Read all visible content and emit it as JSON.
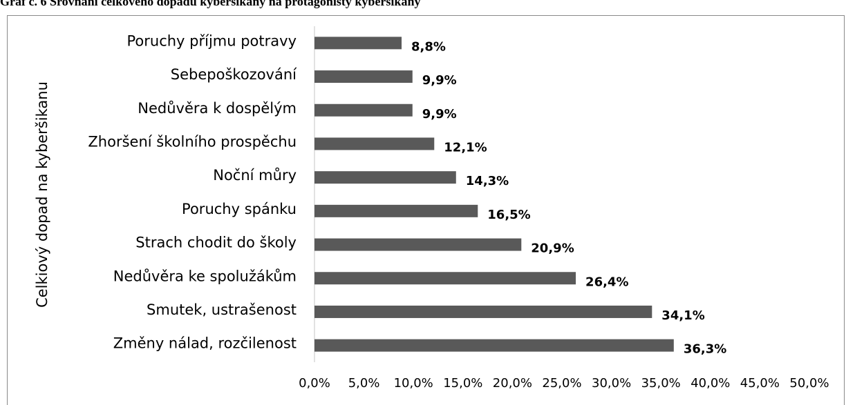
{
  "chart_data": {
    "type": "bar",
    "orientation": "horizontal",
    "title": "Graf č. 6 Srovnání celkového dopadu kyberšikany na protagonisty kyberšikany",
    "y_label": "Celkiový dopad na kyberšikanu",
    "categories": [
      "Poruchy příjmu potravy",
      "Sebepoškozování",
      "Nedůvěra k dospělým",
      "Zhoršení školního prospěchu",
      "Noční můry",
      "Poruchy spánku",
      "Strach chodit do školy",
      "Nedůvěra ke spolužákům",
      "Smutek, ustrašenost",
      "Změny nálad, rozčilenost"
    ],
    "values": [
      8.8,
      9.9,
      9.9,
      12.1,
      14.3,
      16.5,
      20.9,
      26.4,
      34.1,
      36.3
    ],
    "value_labels": [
      "8,8%",
      "9,9%",
      "9,9%",
      "12,1%",
      "14,3%",
      "16,5%",
      "20,9%",
      "26,4%",
      "34,1%",
      "36,3%"
    ],
    "color": "#595959",
    "xlim": [
      0,
      50
    ],
    "xticks": [
      {
        "value": 0,
        "label": "0,0%"
      },
      {
        "value": 5,
        "label": "5,0%"
      },
      {
        "value": 10,
        "label": "10,0%"
      },
      {
        "value": 15,
        "label": "15,0%"
      },
      {
        "value": 20,
        "label": "20,0%"
      },
      {
        "value": 25,
        "label": "25,0%"
      },
      {
        "value": 30,
        "label": "30,0%"
      },
      {
        "value": 35,
        "label": "35,0%"
      },
      {
        "value": 40,
        "label": "40,0%"
      },
      {
        "value": 45,
        "label": "45,0%"
      },
      {
        "value": 50,
        "label": "50,0%"
      }
    ],
    "grid": false
  }
}
